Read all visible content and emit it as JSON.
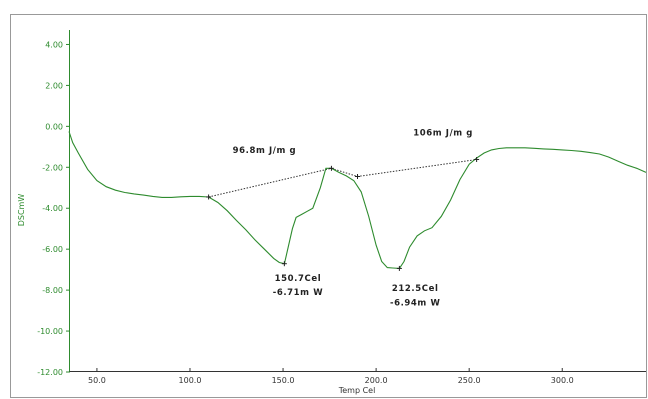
{
  "chart_data": {
    "type": "line",
    "xlabel": "Temp Cel",
    "ylabel": "DSCmW",
    "xlim": [
      35,
      345
    ],
    "ylim": [
      -12,
      5
    ],
    "x_ticks": [
      "50.0",
      "100.0",
      "150.0",
      "200.0",
      "250.0",
      "300.0"
    ],
    "x_tick_values": [
      50,
      100,
      150,
      200,
      250,
      300
    ],
    "y_ticks": [
      "4.00",
      "2.00",
      "0.00",
      "-2.00",
      "-4.00",
      "-6.00",
      "-8.00",
      "-10.00",
      "-12.00"
    ],
    "y_tick_values": [
      4,
      2,
      0,
      -2,
      -4,
      -6,
      -8,
      -10,
      -12
    ],
    "series": [
      {
        "color": "#2e8b2e",
        "x": [
          35,
          37,
          40,
          45,
          50,
          55,
          60,
          65,
          70,
          75,
          80,
          85,
          90,
          95,
          100,
          105,
          110,
          115,
          120,
          125,
          130,
          135,
          140,
          145,
          148,
          150.7,
          152,
          155,
          157,
          160,
          163,
          166,
          170,
          173,
          176,
          180,
          184,
          188,
          192,
          196,
          200,
          203,
          206,
          209,
          212.5,
          215,
          218,
          222,
          226,
          230,
          235,
          240,
          245,
          250,
          254,
          258,
          262,
          266,
          270,
          275,
          280,
          285,
          290,
          295,
          300,
          305,
          310,
          315,
          320,
          325,
          330,
          335,
          340,
          345
        ],
        "y": [
          -0.25,
          -0.8,
          -1.3,
          -2.1,
          -2.65,
          -2.95,
          -3.12,
          -3.23,
          -3.3,
          -3.36,
          -3.42,
          -3.47,
          -3.47,
          -3.44,
          -3.42,
          -3.42,
          -3.45,
          -3.72,
          -4.12,
          -4.6,
          -5.05,
          -5.55,
          -6.0,
          -6.45,
          -6.65,
          -6.71,
          -6.2,
          -5.0,
          -4.45,
          -4.3,
          -4.15,
          -4.0,
          -3.0,
          -2.05,
          -2.05,
          -2.25,
          -2.42,
          -2.65,
          -3.2,
          -4.4,
          -5.8,
          -6.6,
          -6.9,
          -6.92,
          -6.94,
          -6.6,
          -5.9,
          -5.35,
          -5.1,
          -4.95,
          -4.4,
          -3.6,
          -2.6,
          -1.85,
          -1.55,
          -1.3,
          -1.15,
          -1.08,
          -1.05,
          -1.05,
          -1.05,
          -1.07,
          -1.1,
          -1.12,
          -1.15,
          -1.18,
          -1.22,
          -1.28,
          -1.35,
          -1.5,
          -1.7,
          -1.9,
          -2.05,
          -2.25
        ]
      }
    ],
    "baselines": [
      {
        "x": [
          110,
          176
        ],
        "y": [
          -3.45,
          -2.05
        ]
      },
      {
        "x": [
          176,
          190,
          254
        ],
        "y": [
          -2.05,
          -2.45,
          -1.62
        ]
      }
    ],
    "markers": [
      {
        "x": 110,
        "y": -3.45
      },
      {
        "x": 150.7,
        "y": -6.71
      },
      {
        "x": 176,
        "y": -2.05
      },
      {
        "x": 190,
        "y": -2.45
      },
      {
        "x": 212.5,
        "y": -6.94
      },
      {
        "x": 254,
        "y": -1.62
      }
    ],
    "annotations": [
      {
        "text": "96.8m J/m g",
        "x": 140,
        "y": -1.3
      },
      {
        "text": "106m J/m g",
        "x": 236,
        "y": -0.45
      },
      {
        "text": "150.7Cel",
        "x": 158,
        "y": -7.55
      },
      {
        "text": "-6.71m W",
        "x": 158,
        "y": -8.25
      },
      {
        "text": "212.5Cel",
        "x": 221,
        "y": -8.05
      },
      {
        "text": "-6.94m W",
        "x": 221,
        "y": -8.75
      }
    ],
    "axis_color": "#2e8b2e",
    "baseline_color": "#333333",
    "grid": false
  }
}
